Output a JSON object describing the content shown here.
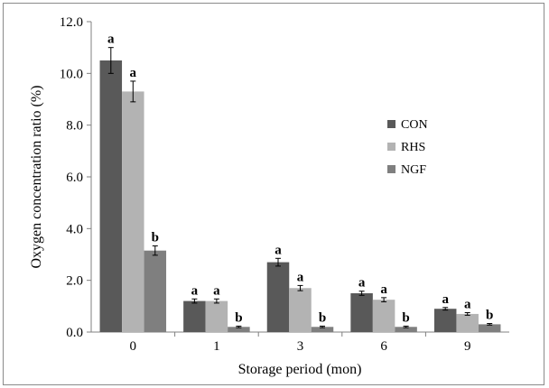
{
  "chart_data": {
    "type": "bar",
    "title": "",
    "xlabel": "Storage period (mon)",
    "ylabel": "Oxygen concentration ratio (%)",
    "ylim": [
      0,
      12
    ],
    "yticks": [
      "0.0",
      "2.0",
      "4.0",
      "6.0",
      "8.0",
      "10.0",
      "12.0"
    ],
    "categories": [
      "0",
      "1",
      "3",
      "6",
      "9"
    ],
    "legend_position": "right",
    "grid": false,
    "series": [
      {
        "name": "CON",
        "color": "#595959",
        "values": [
          10.5,
          1.2,
          2.7,
          1.5,
          0.9
        ],
        "errors": [
          0.5,
          0.08,
          0.15,
          0.08,
          0.05
        ],
        "labels": [
          "a",
          "a",
          "a",
          "a",
          "a"
        ]
      },
      {
        "name": "RHS",
        "color": "#b3b3b3",
        "values": [
          9.3,
          1.2,
          1.7,
          1.25,
          0.7
        ],
        "errors": [
          0.4,
          0.08,
          0.1,
          0.08,
          0.05
        ],
        "labels": [
          "a",
          "a",
          "a",
          "a",
          "a"
        ]
      },
      {
        "name": "NGF",
        "color": "#7f7f7f",
        "values": [
          3.15,
          0.2,
          0.2,
          0.2,
          0.3
        ],
        "errors": [
          0.18,
          0.03,
          0.03,
          0.03,
          0.03
        ],
        "labels": [
          "b",
          "b",
          "b",
          "b",
          "b"
        ]
      }
    ]
  }
}
